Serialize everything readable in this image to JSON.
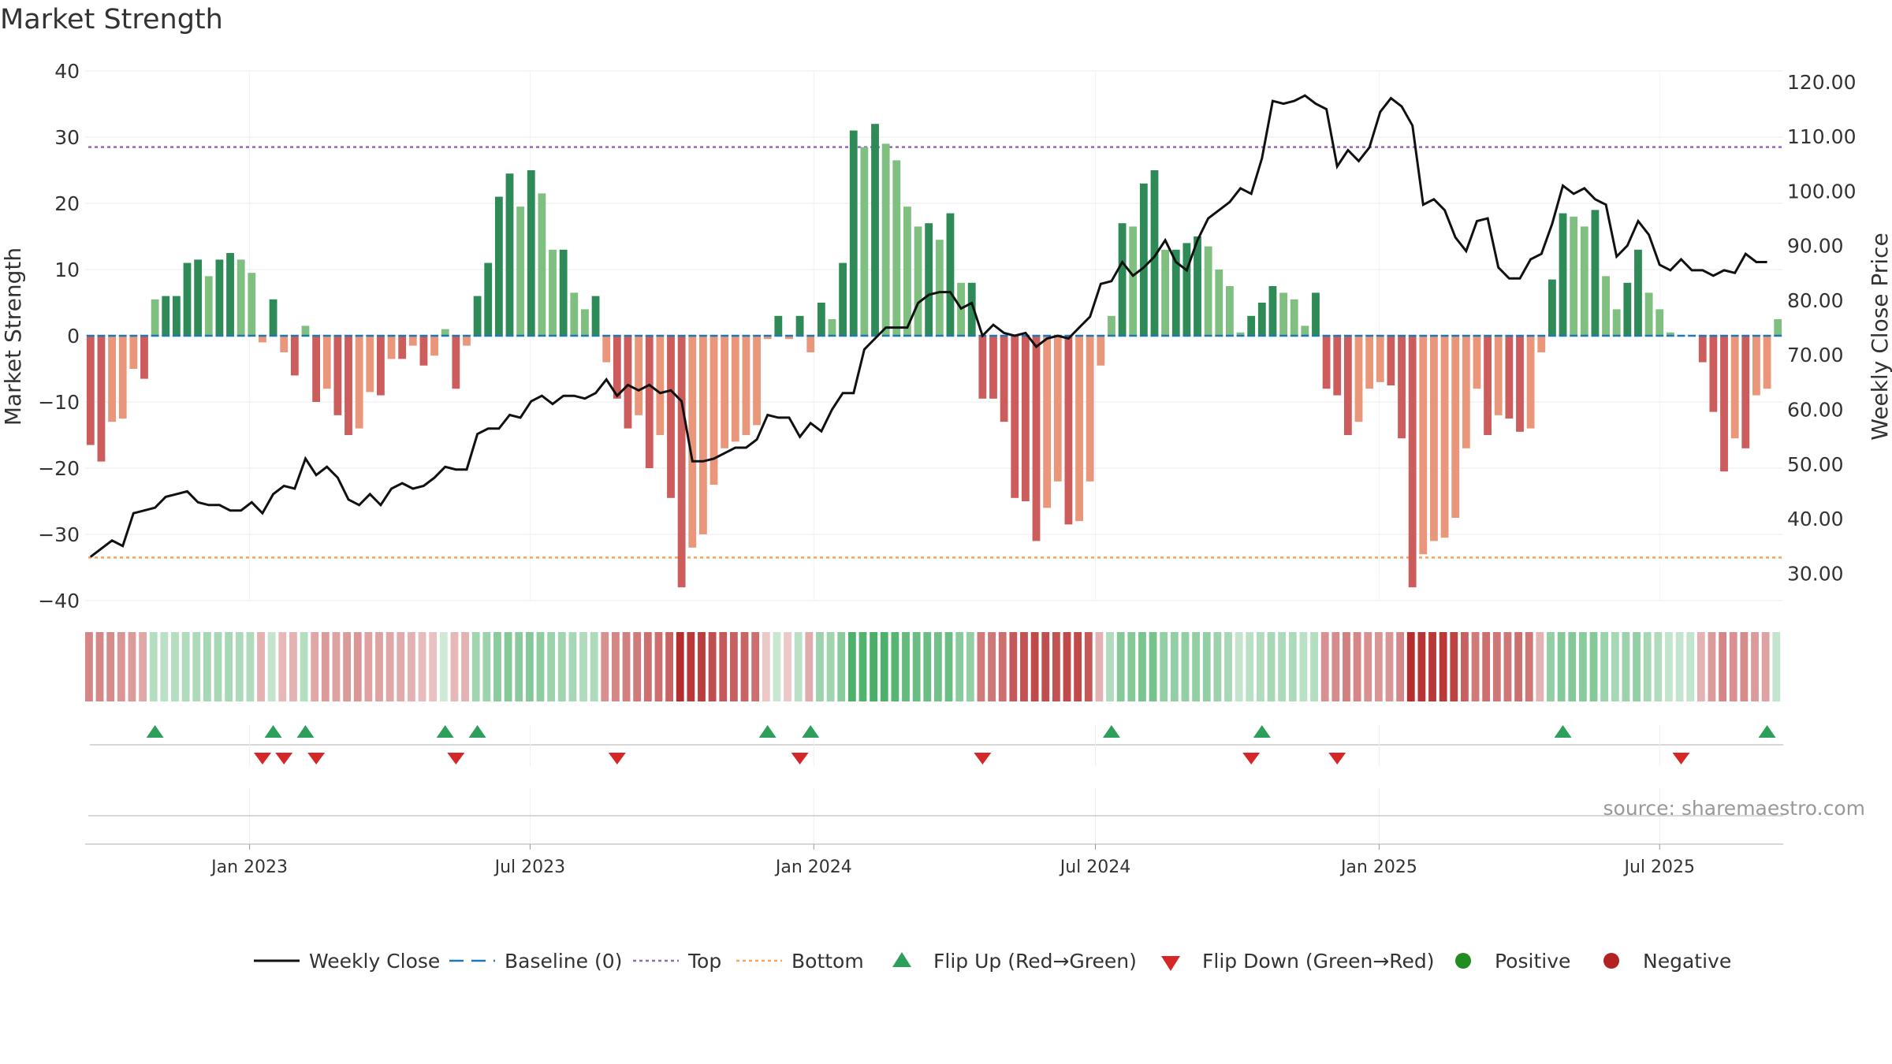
{
  "chart_data": {
    "type": "bar",
    "title": "Market Strength",
    "ylabel": "Market Strength",
    "y2label": "Weekly Close Price",
    "ylim": [
      -40,
      40
    ],
    "y2lim": [
      25,
      122
    ],
    "yticks": [
      40,
      30,
      20,
      10,
      0,
      -10,
      -20,
      -30,
      -40
    ],
    "ytick_labels": [
      "40",
      "30",
      "20",
      "10",
      "0",
      "−10",
      "−20",
      "−30",
      "−40"
    ],
    "y2ticks": [
      120,
      110,
      100,
      90,
      80,
      70,
      60,
      50,
      40,
      30
    ],
    "y2tick_labels": [
      "120.00",
      "110.00",
      "100.00",
      "90.00",
      "80.00",
      "70.00",
      "60.00",
      "50.00",
      "40.00",
      "30.00"
    ],
    "xticks": [
      {
        "label": "Jan 2023",
        "index": 14.8
      },
      {
        "label": "Jul 2023",
        "index": 40.9
      },
      {
        "label": "Jan 2024",
        "index": 67.3
      },
      {
        "label": "Jul 2024",
        "index": 93.5
      },
      {
        "label": "Jan 2025",
        "index": 119.9
      },
      {
        "label": "Jul 2025",
        "index": 146.0
      }
    ],
    "top_line": 28.5,
    "bottom_line": -33.5,
    "strength": [
      -16.5,
      -19,
      -13,
      -12.5,
      -5,
      -6.5,
      5.5,
      6,
      6,
      11,
      11.5,
      9,
      11.5,
      12.5,
      11.5,
      9.5,
      -1,
      5.5,
      -2.5,
      -6,
      1.5,
      -10,
      -8,
      -12,
      -15,
      -14,
      -8.5,
      -9,
      -3.5,
      -3.5,
      -1.5,
      -4.5,
      -3,
      1,
      -8,
      -1.5,
      6,
      11,
      21,
      24.5,
      19.5,
      25,
      21.5,
      13,
      13,
      6.5,
      4,
      6,
      -4,
      -9.5,
      -14,
      -12,
      -20,
      -15,
      -24.5,
      -38,
      -32,
      -30,
      -22.5,
      -17,
      -16,
      -15,
      -13.5,
      -0.5,
      3,
      -0.5,
      3,
      -2.5,
      5,
      2.5,
      11,
      31,
      28.5,
      32,
      29,
      26.5,
      19.5,
      16.5,
      17,
      14.5,
      18.5,
      8,
      8,
      -9.5,
      -9.5,
      -13,
      -24.5,
      -25,
      -31,
      -26,
      -22,
      -28.5,
      -28,
      -22,
      -4.5,
      3,
      17,
      16.5,
      23,
      25,
      13,
      13,
      14,
      15,
      13.5,
      10,
      7.5,
      0.5,
      3,
      5,
      7.5,
      6.5,
      5.5,
      1.5,
      6.5,
      -8,
      -9,
      -15,
      -13,
      -8,
      -7,
      -7.5,
      -15.5,
      -38,
      -33,
      -31,
      -30.5,
      -27.5,
      -17,
      -8,
      -15,
      -12,
      -12.5,
      -14.5,
      -14,
      -2.5,
      8.5,
      18.5,
      18,
      16.5,
      19,
      9,
      4,
      8,
      13,
      6.5,
      4,
      0.5,
      0,
      0,
      -4,
      -11.5,
      -20.5,
      -15.5,
      -17,
      -9,
      -8,
      2.5
    ],
    "weekly_close": [
      33,
      34.5,
      36,
      35,
      41,
      41.5,
      42,
      44,
      44.5,
      45,
      43,
      42.5,
      42.5,
      41.5,
      41.5,
      43,
      41,
      44.5,
      46,
      45.5,
      51,
      48,
      49.5,
      47.5,
      43.5,
      42.5,
      44.5,
      42.5,
      45.5,
      46.5,
      45.5,
      46,
      47.5,
      49.5,
      49,
      49,
      55.5,
      56.5,
      56.5,
      59,
      58.5,
      61.5,
      62.5,
      61,
      62.5,
      62.5,
      62,
      63,
      65.5,
      62.5,
      64.5,
      63.5,
      64.5,
      63,
      63.5,
      61.5,
      50.5,
      50.5,
      51,
      52,
      53,
      53,
      54.5,
      59,
      58.5,
      58.5,
      55,
      57.5,
      56,
      60,
      63,
      63,
      71,
      73,
      75,
      75,
      75,
      79.5,
      81,
      81.5,
      81.5,
      78.5,
      79.5,
      73.5,
      75.5,
      74,
      73.5,
      74,
      71.5,
      73,
      73.5,
      73,
      75,
      77,
      83,
      83.5,
      87,
      84.5,
      86,
      88,
      91,
      87,
      85.5,
      91,
      95,
      96.5,
      98,
      100.5,
      99.5,
      106,
      116.5,
      116,
      116.5,
      117.5,
      116,
      115,
      104.5,
      107.5,
      105.5,
      108,
      114.5,
      117,
      115.5,
      112,
      97.5,
      98.5,
      96.5,
      91.5,
      89,
      94.5,
      95,
      86,
      84,
      84,
      87.5,
      88.5,
      94,
      101,
      99.5,
      100.5,
      98.5,
      97.5,
      88,
      90,
      94.5,
      92,
      86.5,
      85.5,
      87.5,
      85.5,
      85.5,
      84.5,
      85.5,
      85,
      88.5,
      87,
      87
    ],
    "heat_intensity": [
      0.55,
      0.55,
      0.52,
      0.48,
      0.45,
      0.4,
      0.38,
      0.35,
      0.38,
      0.4,
      0.42,
      0.45,
      0.45,
      0.45,
      0.42,
      0.4,
      0.35,
      0.3,
      0.32,
      0.35,
      0.38,
      0.4,
      0.45,
      0.42,
      0.45,
      0.48,
      0.42,
      0.42,
      0.4,
      0.38,
      0.35,
      0.3,
      0.28,
      0.25,
      0.32,
      0.35,
      0.48,
      0.5,
      0.6,
      0.62,
      0.6,
      0.62,
      0.58,
      0.5,
      0.48,
      0.45,
      0.4,
      0.42,
      0.5,
      0.55,
      0.58,
      0.6,
      0.65,
      0.65,
      0.7,
      0.95,
      0.9,
      0.88,
      0.8,
      0.75,
      0.72,
      0.7,
      0.65,
      0.25,
      0.28,
      0.25,
      0.35,
      0.38,
      0.5,
      0.48,
      0.6,
      0.9,
      0.88,
      0.92,
      0.9,
      0.85,
      0.78,
      0.75,
      0.75,
      0.72,
      0.75,
      0.6,
      0.55,
      0.6,
      0.62,
      0.65,
      0.75,
      0.78,
      0.82,
      0.8,
      0.78,
      0.82,
      0.82,
      0.75,
      0.35,
      0.4,
      0.62,
      0.62,
      0.68,
      0.7,
      0.55,
      0.55,
      0.55,
      0.55,
      0.55,
      0.5,
      0.45,
      0.3,
      0.35,
      0.4,
      0.45,
      0.42,
      0.42,
      0.35,
      0.38,
      0.5,
      0.52,
      0.58,
      0.55,
      0.5,
      0.48,
      0.48,
      0.55,
      0.95,
      0.92,
      0.9,
      0.9,
      0.85,
      0.72,
      0.6,
      0.65,
      0.62,
      0.62,
      0.65,
      0.62,
      0.35,
      0.55,
      0.62,
      0.62,
      0.6,
      0.62,
      0.5,
      0.45,
      0.5,
      0.55,
      0.45,
      0.4,
      0.3,
      0.3,
      0.3,
      0.35,
      0.45,
      0.55,
      0.5,
      0.52,
      0.45,
      0.42,
      0.3
    ],
    "flips_up": [
      6,
      17,
      20,
      33,
      36,
      63,
      67,
      95,
      109,
      137,
      156
    ],
    "flips_down": [
      16,
      18,
      21,
      34,
      49,
      66,
      83,
      108,
      116,
      148
    ],
    "source": "source: sharemaestro.com",
    "legend": [
      {
        "label": "Weekly Close",
        "kind": "line"
      },
      {
        "label": "Baseline (0)",
        "kind": "dash"
      },
      {
        "label": "Top",
        "kind": "dot-purple"
      },
      {
        "label": "Bottom",
        "kind": "dot-orange"
      },
      {
        "label": "Flip Up (Red→Green)",
        "kind": "tri-up"
      },
      {
        "label": "Flip Down (Green→Red)",
        "kind": "tri-down"
      },
      {
        "label": "Positive",
        "kind": "dot-green"
      },
      {
        "label": "Negative",
        "kind": "dot-red"
      }
    ],
    "colors": {
      "pos_strong": "#2e8b57",
      "pos_light": "#7fbf7f",
      "neg_strong": "#cd5c5c",
      "neg_light": "#e9967a",
      "close_line": "#111111",
      "baseline": "#1f77b4",
      "top_line": "#9467bd",
      "bottom_line": "#f4a460",
      "flip_up": "#2ca05a",
      "flip_down": "#d62728",
      "legend_positive": "#228b22",
      "legend_negative": "#b22222"
    }
  }
}
